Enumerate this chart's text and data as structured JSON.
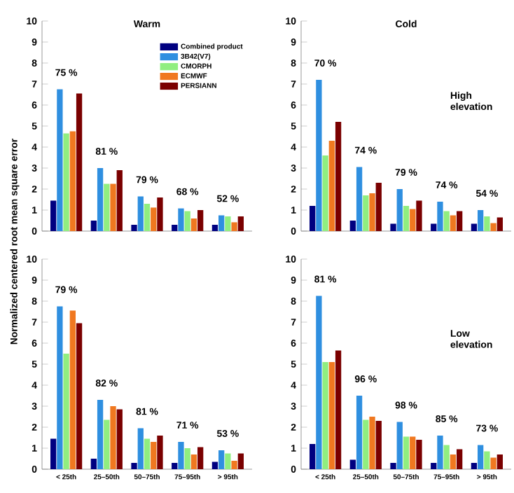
{
  "chart_data": [
    {
      "type": "bar",
      "title": "Warm",
      "ylabel": "Normalized centered root mean square error",
      "categories": [
        null,
        null,
        null,
        null,
        null
      ],
      "ylim": [
        0,
        10
      ],
      "yticks": [
        0,
        1,
        2,
        3,
        4,
        5,
        6,
        7,
        8,
        9,
        10
      ],
      "tick_labels": "y",
      "legend": "top right",
      "series": [
        {
          "name": "Combined product",
          "color": "#000080",
          "values": [
            1.45,
            0.5,
            0.3,
            0.3,
            0.3
          ]
        },
        {
          "name": "3B42(V7)",
          "color": "#2f8fe0",
          "values": [
            6.75,
            3.0,
            1.65,
            1.08,
            0.75
          ]
        },
        {
          "name": "CMORPH",
          "color": "#90ee80",
          "values": [
            4.65,
            2.25,
            1.3,
            0.95,
            0.7
          ]
        },
        {
          "name": "ECMWF",
          "color": "#f07820",
          "values": [
            4.75,
            2.25,
            1.12,
            0.6,
            0.42
          ]
        },
        {
          "name": "PERSIANN",
          "color": "#7a0000",
          "values": [
            6.55,
            2.9,
            1.6,
            1.0,
            0.7
          ]
        }
      ],
      "annotations": [
        "75 %",
        "81 %",
        "79 %",
        "68 %",
        "52 %"
      ]
    },
    {
      "type": "bar",
      "title": "Cold",
      "categories": [
        null,
        null,
        null,
        null,
        null
      ],
      "ylim": [
        0,
        10
      ],
      "yticks": [
        0,
        1,
        2,
        3,
        4,
        5,
        6,
        7,
        8,
        9,
        10
      ],
      "tick_labels": "y",
      "series": [
        {
          "color": "#000080",
          "values": [
            1.2,
            0.5,
            0.35,
            0.35,
            0.35
          ]
        },
        {
          "color": "#2f8fe0",
          "values": [
            7.2,
            3.05,
            2.0,
            1.4,
            1.0
          ]
        },
        {
          "color": "#90ee80",
          "values": [
            3.6,
            1.7,
            1.2,
            0.95,
            0.7
          ]
        },
        {
          "color": "#f07820",
          "values": [
            4.3,
            1.8,
            1.05,
            0.75,
            0.38
          ]
        },
        {
          "color": "#7a0000",
          "values": [
            5.2,
            2.3,
            1.45,
            0.95,
            0.65
          ]
        }
      ],
      "annotations": [
        "70 %",
        "74 %",
        "79 %",
        "74 %",
        "54 %",
        "High elevation"
      ]
    },
    {
      "type": "bar",
      "categories": [
        "< 25th",
        "25–50th",
        "50–75th",
        "75–95th",
        "> 95th"
      ],
      "ylim": [
        0,
        10
      ],
      "yticks": [
        0,
        1,
        2,
        3,
        4,
        5,
        6,
        7,
        8,
        9,
        10
      ],
      "series": [
        {
          "color": "#000080",
          "values": [
            1.45,
            0.5,
            0.3,
            0.3,
            0.35
          ]
        },
        {
          "color": "#2f8fe0",
          "values": [
            7.75,
            3.3,
            1.95,
            1.3,
            0.9
          ]
        },
        {
          "color": "#90ee80",
          "values": [
            5.5,
            2.35,
            1.45,
            1.0,
            0.75
          ]
        },
        {
          "color": "#f07820",
          "values": [
            7.55,
            3.0,
            1.3,
            0.7,
            0.4
          ]
        },
        {
          "color": "#7a0000",
          "values": [
            6.95,
            2.85,
            1.6,
            1.05,
            0.75
          ]
        }
      ],
      "annotations": [
        "79 %",
        "82 %",
        "81 %",
        "71 %",
        "53 %"
      ]
    },
    {
      "type": "bar",
      "categories": [
        "< 25th",
        "25–50th",
        "50–75th",
        "75–95th",
        "> 95th"
      ],
      "ylim": [
        0,
        10
      ],
      "yticks": [
        0,
        1,
        2,
        3,
        4,
        5,
        6,
        7,
        8,
        9,
        10
      ],
      "series": [
        {
          "color": "#000080",
          "values": [
            1.2,
            0.45,
            0.3,
            0.3,
            0.3
          ]
        },
        {
          "color": "#2f8fe0",
          "values": [
            8.25,
            3.5,
            2.25,
            1.6,
            1.15
          ]
        },
        {
          "color": "#90ee80",
          "values": [
            5.1,
            2.35,
            1.55,
            1.15,
            0.85
          ]
        },
        {
          "color": "#f07820",
          "values": [
            5.1,
            2.5,
            1.55,
            0.7,
            0.55
          ]
        },
        {
          "color": "#7a0000",
          "values": [
            5.65,
            2.3,
            1.4,
            0.95,
            0.7
          ]
        }
      ],
      "annotations": [
        "81 %",
        "96 %",
        "98 %",
        "85 %",
        "73 %",
        "Low elevation"
      ]
    }
  ]
}
